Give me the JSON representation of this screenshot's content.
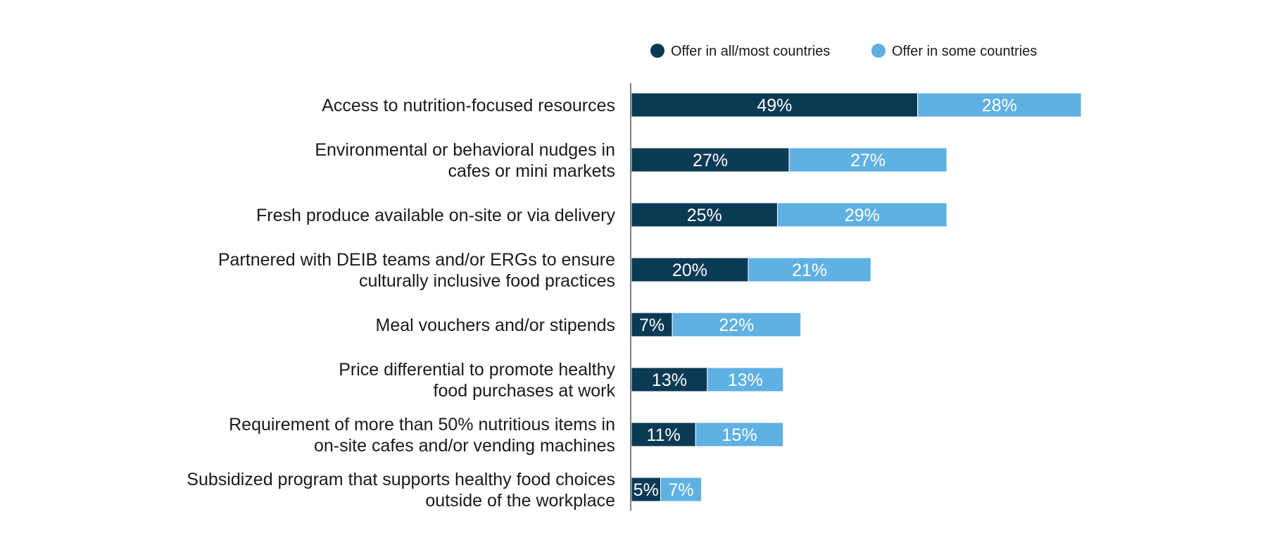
{
  "chart_data": {
    "type": "bar",
    "orientation": "horizontal",
    "stacked": true,
    "categories": [
      [
        "Access to nutrition-focused resources"
      ],
      [
        "Environmental or behavioral nudges in",
        "cafes or mini markets"
      ],
      [
        "Fresh produce available on-site or via delivery"
      ],
      [
        "Partnered with DEIB teams and/or ERGs to ensure",
        "culturally inclusive food practices"
      ],
      [
        "Meal vouchers and/or stipends"
      ],
      [
        "Price differential to promote healthy",
        "food purchases at work"
      ],
      [
        "Requirement of more than 50% nutritious items in",
        "on-site cafes and/or vending machines"
      ],
      [
        "Subsidized program that supports healthy food choices",
        "outside of the workplace"
      ]
    ],
    "series": [
      {
        "name": "Offer in all/most countries",
        "color": "#0b3a55",
        "values": [
          49,
          27,
          25,
          20,
          7,
          13,
          11,
          5
        ],
        "labels": [
          "49%",
          "27%",
          "25%",
          "20%",
          "7%",
          "13%",
          "11%",
          "5%"
        ]
      },
      {
        "name": "Offer in some countries",
        "color": "#5fb0e3",
        "values": [
          28,
          27,
          29,
          21,
          22,
          13,
          15,
          7
        ],
        "labels": [
          "28%",
          "27%",
          "29%",
          "21%",
          "22%",
          "13%",
          "15%",
          "7%"
        ]
      }
    ],
    "xlim": [
      0,
      100
    ],
    "grid": false,
    "legend_position": "top-right"
  }
}
